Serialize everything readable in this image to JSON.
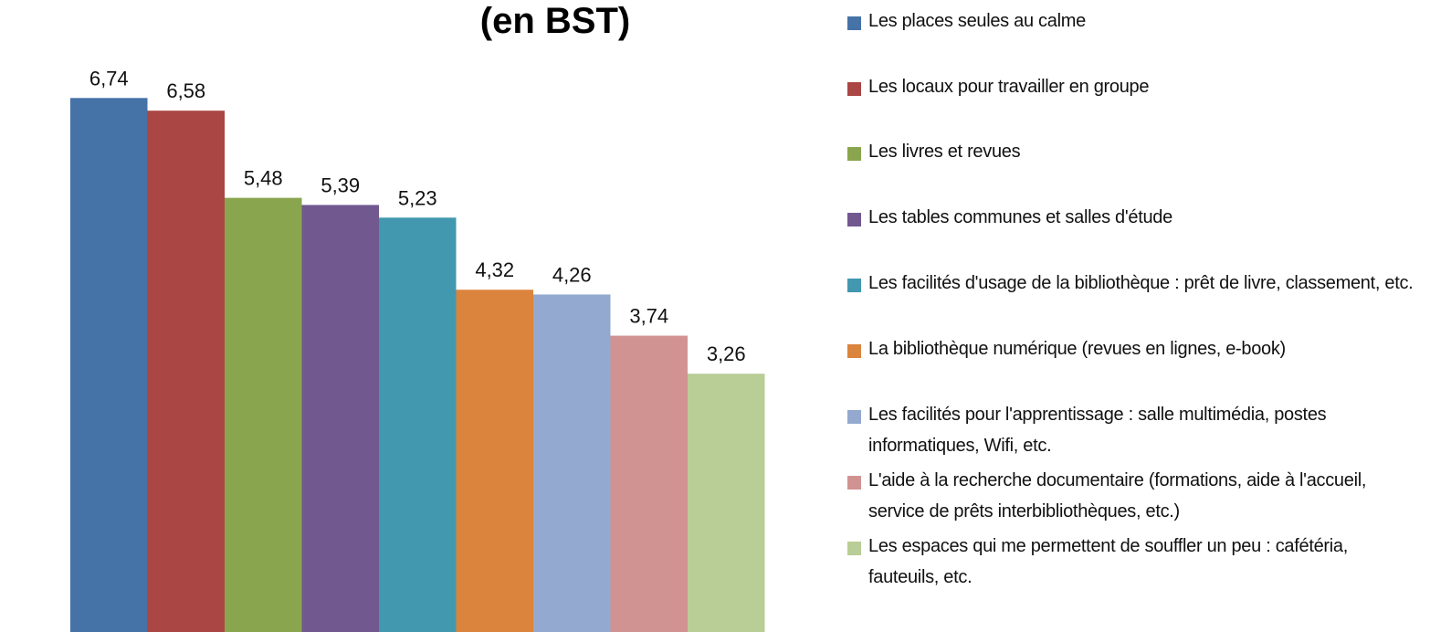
{
  "chart_data": {
    "type": "bar",
    "title": "(en BST)",
    "categories": [
      "Les places seules au calme",
      "Les locaux pour travailler en groupe",
      "Les livres et revues",
      "Les tables communes et salles d'étude",
      "Les facilités d'usage de la bibliothèque : prêt de livre, classement, etc.",
      "La bibliothèque numérique (revues en lignes, e-book)",
      "Les facilités pour l'apprentissage : salle multimédia, postes informatiques, Wifi, etc.",
      "L'aide à la recherche documentaire (formations, aide à l'accueil, service de prêts interbibliothèques, etc.)",
      "Les espaces qui me permettent de souffler un peu : cafétéria, fauteuils, etc."
    ],
    "values": [
      6.74,
      6.58,
      5.48,
      5.39,
      5.23,
      4.32,
      4.26,
      3.74,
      3.26
    ],
    "value_labels": [
      "6,74",
      "6,58",
      "5,48",
      "5,39",
      "5,23",
      "4,32",
      "4,26",
      "3,74",
      "3,26"
    ],
    "colors": [
      "#4572a7",
      "#aa4643",
      "#89a54e",
      "#71588f",
      "#4198af",
      "#db843d",
      "#93a9cf",
      "#d19392",
      "#b9cd96"
    ],
    "ylim": [
      0,
      8
    ],
    "legend": "right"
  }
}
